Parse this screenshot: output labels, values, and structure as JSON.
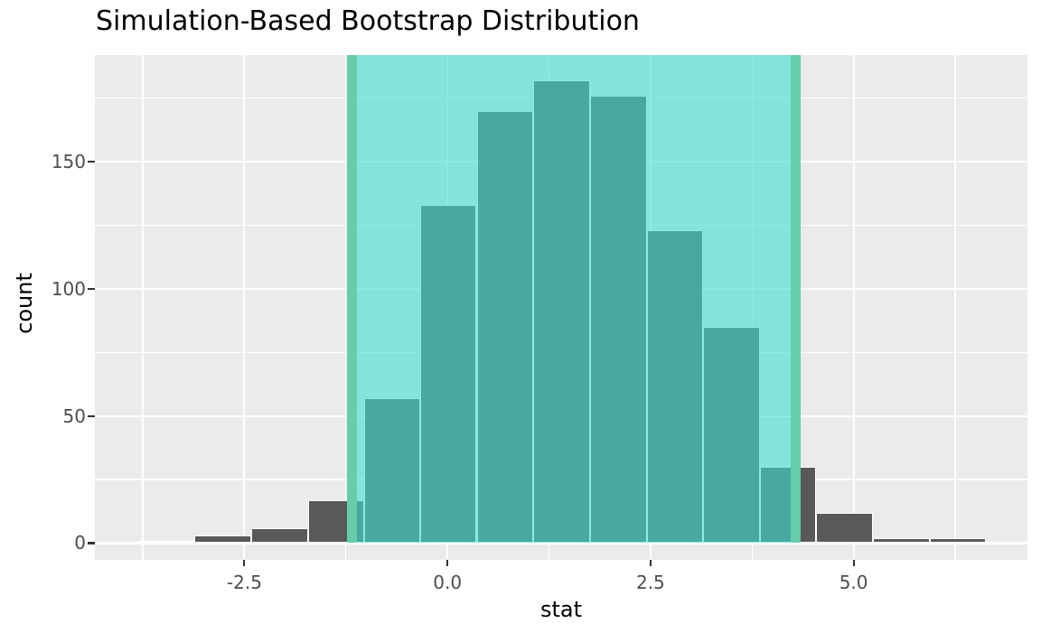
{
  "chart_data": {
    "type": "histogram",
    "title": "Simulation-Based Bootstrap Distribution",
    "xlabel": "stat",
    "ylabel": "count",
    "bin_edges": [
      -3.82,
      -3.12,
      -2.42,
      -1.72,
      -1.03,
      -0.33,
      0.36,
      1.06,
      1.76,
      2.46,
      3.15,
      3.85,
      4.54,
      5.24,
      5.94,
      6.63
    ],
    "counts": [
      1,
      3,
      6,
      17,
      57,
      133,
      170,
      182,
      176,
      123,
      85,
      30,
      12,
      2,
      2
    ],
    "confidence_interval": {
      "lower": -1.18,
      "upper": 4.29
    },
    "x_ticks": [
      {
        "value": -2.5,
        "label": "-2.5"
      },
      {
        "value": 0.0,
        "label": "0.0"
      },
      {
        "value": 2.5,
        "label": "2.5"
      },
      {
        "value": 5.0,
        "label": "5.0"
      }
    ],
    "y_ticks": [
      {
        "value": 0,
        "label": "0"
      },
      {
        "value": 50,
        "label": "50"
      },
      {
        "value": 100,
        "label": "100"
      },
      {
        "value": 150,
        "label": "150"
      }
    ],
    "x_minor_ticks": [
      -3.75,
      -1.25,
      1.25,
      3.75,
      6.25
    ],
    "y_minor_ticks": [
      25,
      75,
      125,
      175
    ],
    "x_range": [
      -4.34,
      7.14
    ],
    "y_range": [
      -6.57,
      191.93
    ],
    "grid": "on",
    "legend": "none",
    "colors": {
      "bar_fill": "#595959",
      "bar_border": "#FFFFFF",
      "panel_background": "#EBEBEB",
      "gridline": "#FFFFFF",
      "ci_region_fill": "rgba(64,224,208,0.6)",
      "ci_line": "#66CDAA",
      "tick_label": "#4D4D4D",
      "title_text": "#000000"
    }
  }
}
